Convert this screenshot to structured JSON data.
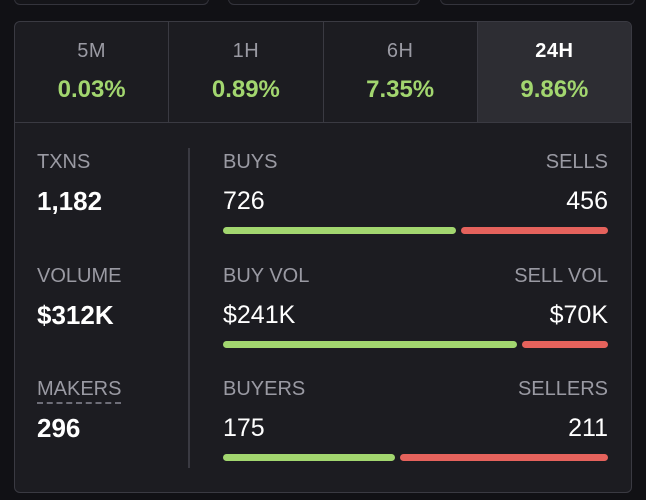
{
  "timeframes": [
    {
      "label": "5M",
      "change": "0.03%"
    },
    {
      "label": "1H",
      "change": "0.89%"
    },
    {
      "label": "6H",
      "change": "7.35%"
    },
    {
      "label": "24H",
      "change": "9.86%",
      "active": true
    }
  ],
  "summary": {
    "txns": {
      "label": "TXNS",
      "value": "1,182"
    },
    "volume": {
      "label": "VOLUME",
      "value": "$312K"
    },
    "makers": {
      "label": "MAKERS",
      "value": "296"
    }
  },
  "rows": {
    "txns": {
      "left_label": "BUYS",
      "right_label": "SELLS",
      "left_value": "726",
      "right_value": "456",
      "buy_fraction": 0.614
    },
    "volume": {
      "left_label": "BUY VOL",
      "right_label": "SELL VOL",
      "left_value": "$241K",
      "right_value": "$70K",
      "buy_fraction": 0.775
    },
    "makers": {
      "left_label": "BUYERS",
      "right_label": "SELLERS",
      "left_value": "175",
      "right_value": "211",
      "buy_fraction": 0.453
    }
  },
  "colors": {
    "positive": "#a2d66f",
    "negative": "#e5625c",
    "panel": "#1c1c21",
    "active_tab": "#2d2d33"
  }
}
